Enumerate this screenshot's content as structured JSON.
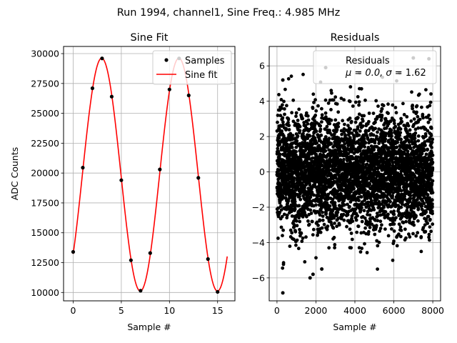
{
  "suptitle": "Run 1994, channel1, Sine Freq.: 4.985 MHz",
  "colors": {
    "fit": "#ff0000",
    "samples": "#000000",
    "grid": "#b0b0b0"
  },
  "chart_data": [
    {
      "type": "scatter+line",
      "title": "Sine Fit",
      "xlabel": "Sample #",
      "ylabel": "ADC Counts",
      "xlim": [
        -1.0,
        16.8
      ],
      "ylim": [
        9300,
        30600
      ],
      "xticks": [
        0,
        5,
        10,
        15
      ],
      "xtick_labels": [
        "0",
        "5",
        "10",
        "15"
      ],
      "yticks": [
        10000,
        12500,
        15000,
        17500,
        20000,
        22500,
        25000,
        27500,
        30000
      ],
      "ytick_labels": [
        "10000",
        "12500",
        "15000",
        "17500",
        "20000",
        "22500",
        "25000",
        "27500",
        "30000"
      ],
      "grid": true,
      "legend_position": "top-right",
      "legend": [
        "Samples",
        "Sine fit"
      ],
      "samples": {
        "name": "Samples",
        "x": [
          0,
          1,
          2,
          3,
          4,
          5,
          6,
          7,
          8,
          9,
          10,
          11,
          12,
          13,
          14,
          15
        ],
        "y": [
          13400,
          20450,
          27100,
          29600,
          26400,
          19400,
          12700,
          10150,
          13300,
          20300,
          27000,
          29600,
          26500,
          19600,
          12800,
          10050
        ]
      },
      "fit": {
        "name": "Sine fit",
        "x_range": [
          0,
          16
        ],
        "offset": 19870,
        "amplitude": 9750,
        "period": 8.02,
        "phase_peak_x": 2.96
      }
    },
    {
      "type": "scatter",
      "title": "Residuals",
      "xlabel": "Sample #",
      "ylabel": "",
      "xlim": [
        -400,
        8400
      ],
      "ylim": [
        -7.3,
        7.1
      ],
      "xticks": [
        0,
        2000,
        4000,
        6000,
        8000
      ],
      "xtick_labels": [
        "0",
        "2000",
        "4000",
        "6000",
        "8000"
      ],
      "yticks": [
        -6,
        -4,
        -2,
        0,
        2,
        4,
        6
      ],
      "ytick_labels": [
        "−6",
        "−4",
        "−2",
        "0",
        "2",
        "4",
        "6"
      ],
      "grid": true,
      "legend_position": "top-right",
      "legend_line1": "Residuals",
      "legend_line2_prefix": "μ = 0.0, ",
      "legend_line2_sigma": "σ",
      "legend_line2_suffix": " = 1.62",
      "residuals": {
        "n_points": 8000,
        "mean": 0.0,
        "std": 1.62,
        "outliers": [
          {
            "x": 300,
            "y": -6.85
          },
          {
            "x": 1700,
            "y": -6.0
          },
          {
            "x": 2500,
            "y": 5.9
          },
          {
            "x": 7000,
            "y": 6.45
          },
          {
            "x": 7800,
            "y": 6.4
          },
          {
            "x": 1850,
            "y": -5.8
          },
          {
            "x": 2300,
            "y": -5.5
          },
          {
            "x": 300,
            "y": 5.2
          }
        ]
      }
    }
  ]
}
